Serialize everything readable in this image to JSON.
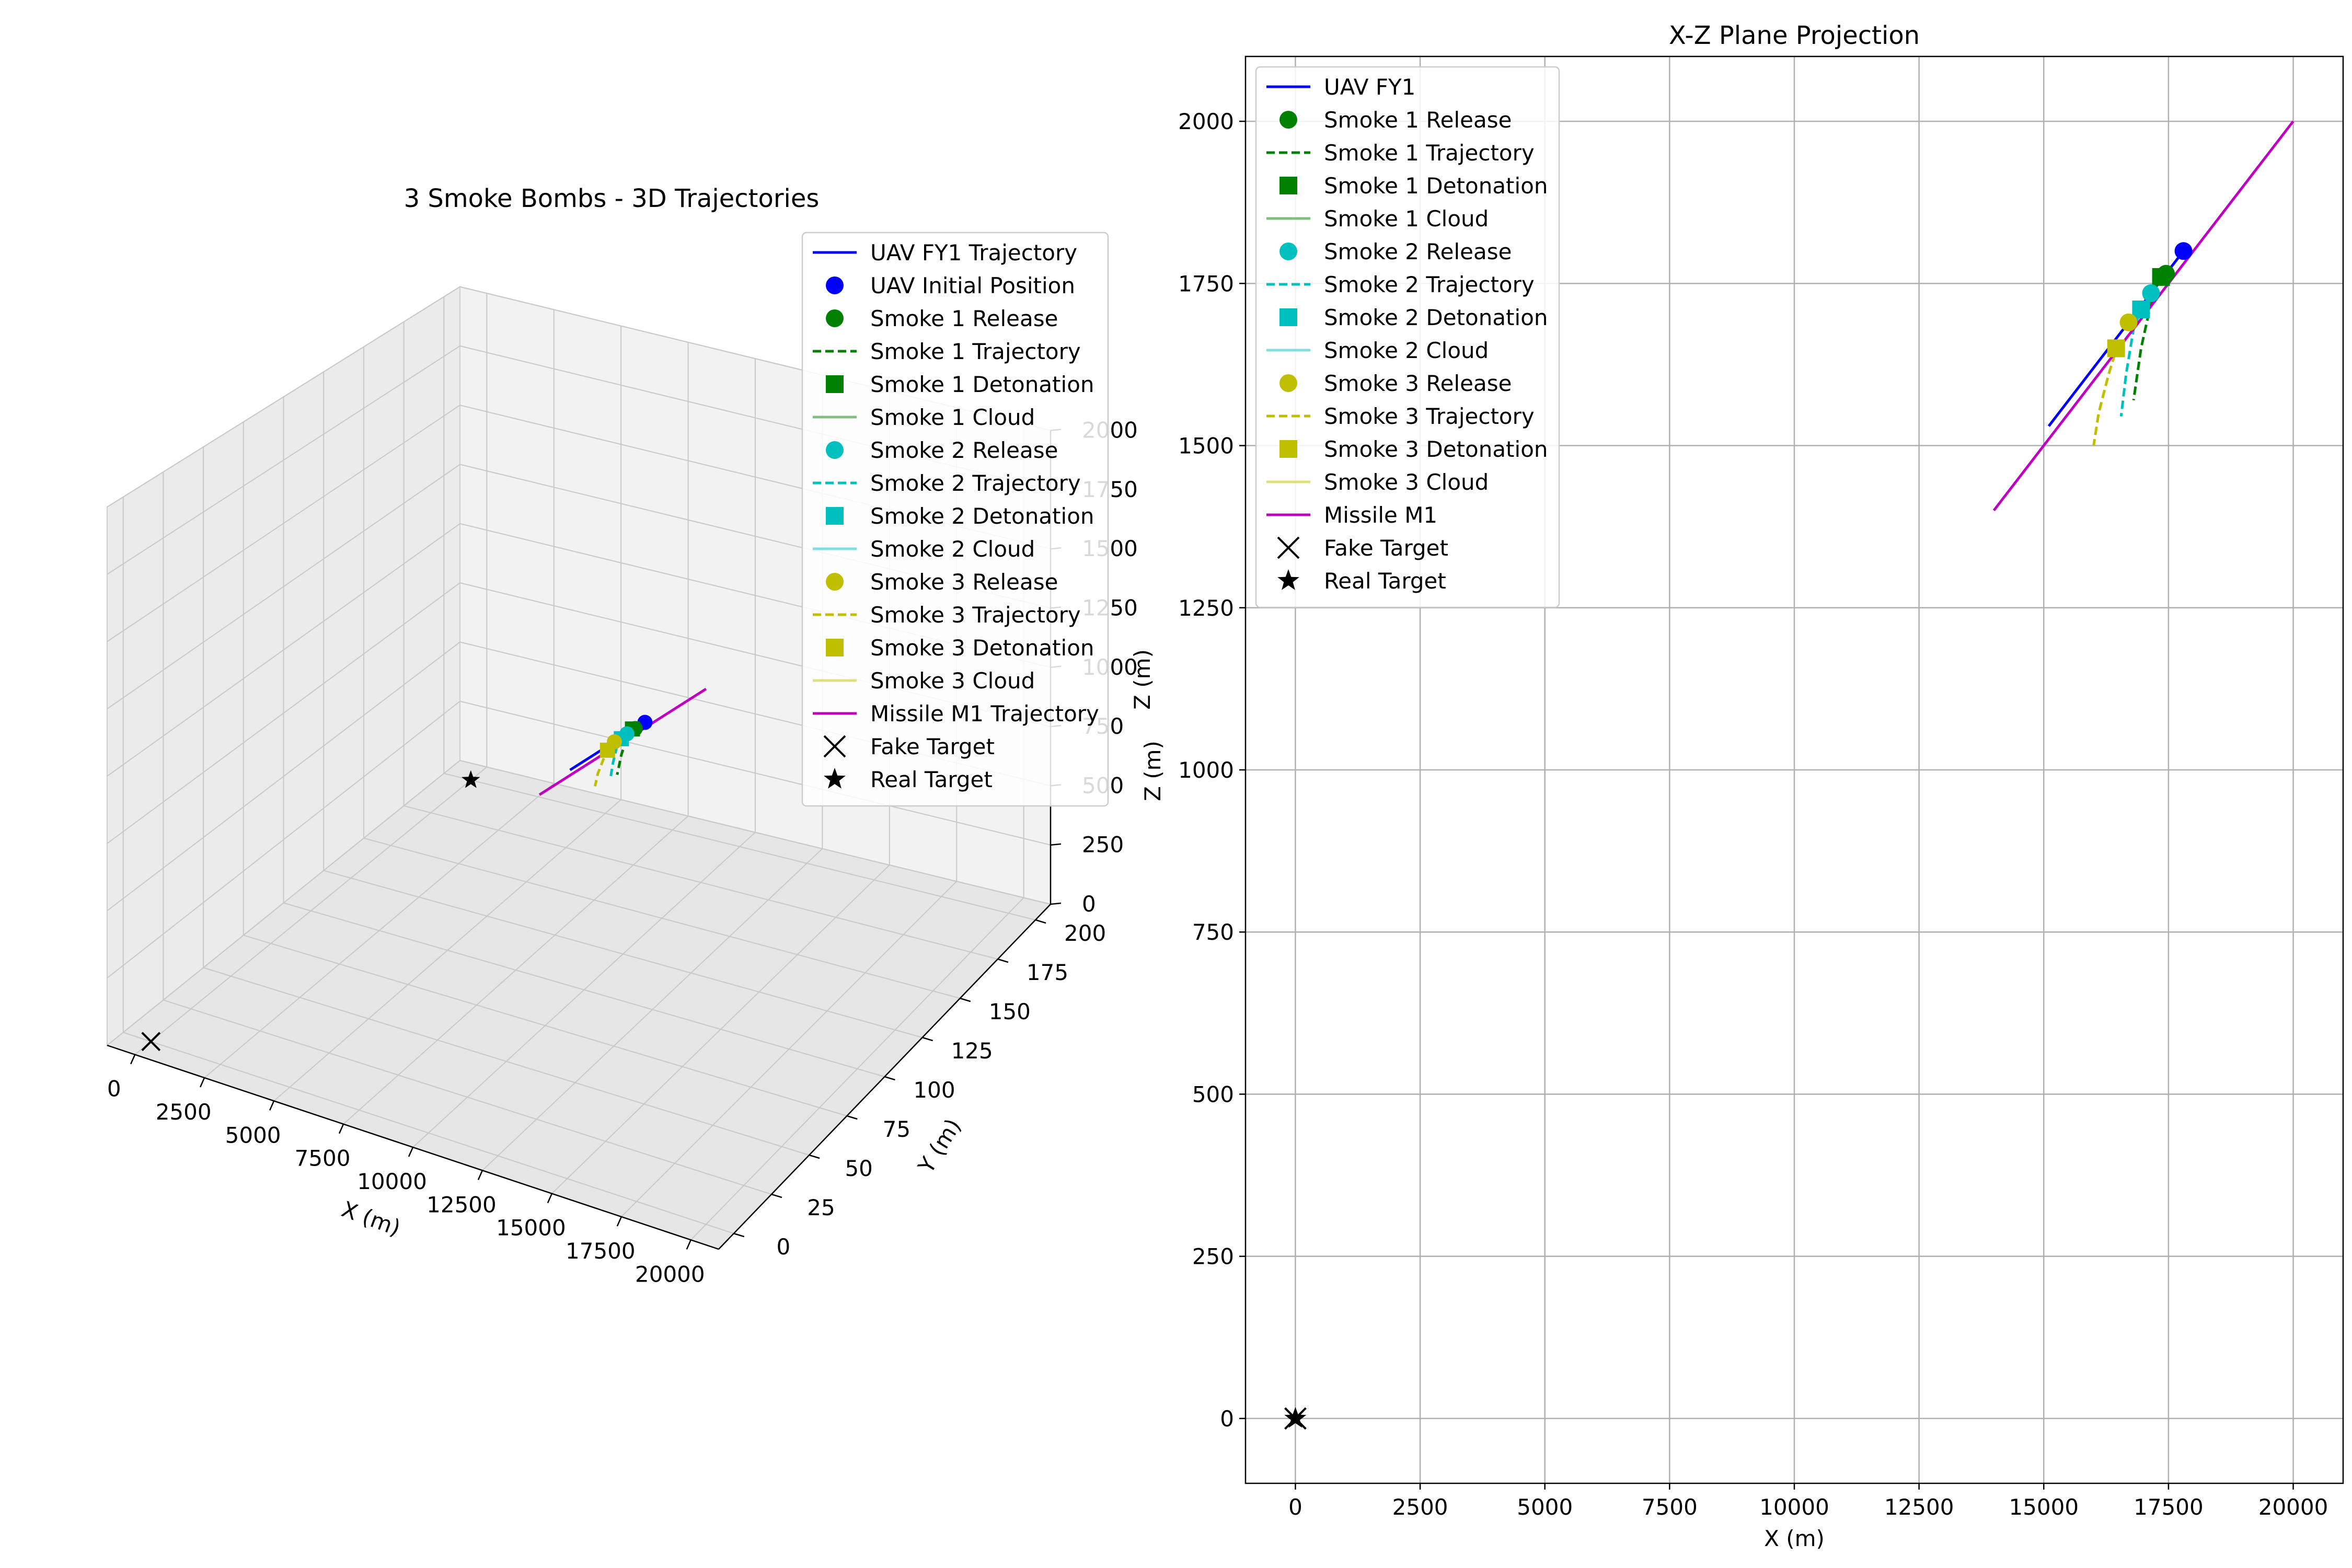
{
  "colors": {
    "uav": "#0000ff",
    "smoke1": "#008000",
    "smoke1_cloud": "#7fbf7f",
    "smoke2": "#00bfbf",
    "smoke2_cloud": "#7fdfdf",
    "smoke3": "#bfbf00",
    "smoke3_cloud": "#dfdf7f",
    "missile": "#bf00bf",
    "target": "#000000",
    "grid": "#b0b0b0"
  },
  "chart_data": [
    {
      "type": "line3d",
      "title": "3 Smoke Bombs - 3D Trajectories",
      "xlabel": "X (m)",
      "ylabel": "Y (m)",
      "zlabel": "Z (m)",
      "xticks": [
        "0",
        "2500",
        "5000",
        "7500",
        "10000",
        "12500",
        "15000",
        "17500",
        "20000"
      ],
      "yticks": [
        "0",
        "25",
        "50",
        "75",
        "100",
        "125",
        "150",
        "175",
        "200"
      ],
      "zticks": [
        "0",
        "250",
        "500",
        "750",
        "1000",
        "1250",
        "1500",
        "1750",
        "2000"
      ],
      "xlim": [
        -1000,
        21000
      ],
      "ylim": [
        -10,
        210
      ],
      "zlim": [
        0,
        2000
      ],
      "legend_position": "upper-right",
      "legend": [
        {
          "label": "UAV FY1 Trajectory",
          "kind": "line",
          "color": "uav"
        },
        {
          "label": "UAV Initial Position",
          "kind": "circle",
          "color": "uav"
        },
        {
          "label": "Smoke 1 Release",
          "kind": "circle",
          "color": "smoke1"
        },
        {
          "label": "Smoke 1 Trajectory",
          "kind": "dash",
          "color": "smoke1"
        },
        {
          "label": "Smoke 1 Detonation",
          "kind": "square",
          "color": "smoke1"
        },
        {
          "label": "Smoke 1 Cloud",
          "kind": "line",
          "color": "smoke1_cloud"
        },
        {
          "label": "Smoke 2 Release",
          "kind": "circle",
          "color": "smoke2"
        },
        {
          "label": "Smoke 2 Trajectory",
          "kind": "dash",
          "color": "smoke2"
        },
        {
          "label": "Smoke 2 Detonation",
          "kind": "square",
          "color": "smoke2"
        },
        {
          "label": "Smoke 2 Cloud",
          "kind": "line",
          "color": "smoke2_cloud"
        },
        {
          "label": "Smoke 3 Release",
          "kind": "circle",
          "color": "smoke3"
        },
        {
          "label": "Smoke 3 Trajectory",
          "kind": "dash",
          "color": "smoke3"
        },
        {
          "label": "Smoke 3 Detonation",
          "kind": "square",
          "color": "smoke3"
        },
        {
          "label": "Smoke 3 Cloud",
          "kind": "line",
          "color": "smoke3_cloud"
        },
        {
          "label": "Missile M1 Trajectory",
          "kind": "line",
          "color": "missile"
        },
        {
          "label": "Fake Target",
          "kind": "x",
          "color": "target"
        },
        {
          "label": "Real Target",
          "kind": "star",
          "color": "target"
        }
      ],
      "series": {
        "uav": {
          "x": [
            17800,
            15100
          ],
          "y": [
            0,
            0
          ],
          "z": [
            1800,
            1530
          ]
        },
        "missile": {
          "x": [
            20000,
            14000
          ],
          "y": [
            0,
            0
          ],
          "z": [
            2000,
            1400
          ]
        },
        "smoke1_traj": {
          "x": [
            17350,
            17150,
            16950,
            16800
          ],
          "y": [
            0,
            0,
            0,
            0
          ],
          "z": [
            1760,
            1720,
            1650,
            1570
          ]
        },
        "smoke2_traj": {
          "x": [
            17000,
            16800,
            16650,
            16550
          ],
          "y": [
            0,
            0,
            0,
            0
          ],
          "z": [
            1720,
            1680,
            1610,
            1545
          ]
        },
        "smoke3_traj": {
          "x": [
            16500,
            16300,
            16100,
            16000
          ],
          "y": [
            0,
            0,
            0,
            0
          ],
          "z": [
            1660,
            1610,
            1550,
            1500
          ]
        },
        "points": [
          {
            "key": "uav_initial",
            "x": 17800,
            "y": 0,
            "z": 1800,
            "marker": "circle",
            "color": "uav"
          },
          {
            "key": "smoke1_release",
            "x": 17450,
            "y": 0,
            "z": 1765,
            "marker": "circle",
            "color": "smoke1"
          },
          {
            "key": "smoke1_detonation",
            "x": 17350,
            "y": 0,
            "z": 1760,
            "marker": "square",
            "color": "smoke1"
          },
          {
            "key": "smoke2_release",
            "x": 17150,
            "y": 0,
            "z": 1735,
            "marker": "circle",
            "color": "smoke2"
          },
          {
            "key": "smoke2_detonation",
            "x": 16950,
            "y": 0,
            "z": 1710,
            "marker": "square",
            "color": "smoke2"
          },
          {
            "key": "smoke3_release",
            "x": 16700,
            "y": 0,
            "z": 1690,
            "marker": "circle",
            "color": "smoke3"
          },
          {
            "key": "smoke3_detonation",
            "x": 16450,
            "y": 0,
            "z": 1650,
            "marker": "square",
            "color": "smoke3"
          },
          {
            "key": "fake_target",
            "x": 0,
            "y": 0,
            "z": 0,
            "marker": "x",
            "color": "target"
          },
          {
            "key": "real_target",
            "x": 0,
            "y": 200,
            "z": 0,
            "marker": "star",
            "color": "target"
          }
        ]
      }
    },
    {
      "type": "line",
      "title": "X-Z Plane Projection",
      "xlabel": "X (m)",
      "ylabel": "Z (m)",
      "xticks": [
        0,
        2500,
        5000,
        7500,
        10000,
        12500,
        15000,
        17500,
        20000
      ],
      "yticks": [
        0,
        250,
        500,
        750,
        1000,
        1250,
        1500,
        1750,
        2000
      ],
      "xlim": [
        -1000,
        21000
      ],
      "ylim": [
        -100,
        2100
      ],
      "grid": true,
      "legend_position": "upper-left",
      "legend": [
        {
          "label": "UAV FY1",
          "kind": "line",
          "color": "uav"
        },
        {
          "label": "Smoke 1 Release",
          "kind": "circle",
          "color": "smoke1"
        },
        {
          "label": "Smoke 1 Trajectory",
          "kind": "dash",
          "color": "smoke1"
        },
        {
          "label": "Smoke 1 Detonation",
          "kind": "square",
          "color": "smoke1"
        },
        {
          "label": "Smoke 1 Cloud",
          "kind": "line",
          "color": "smoke1_cloud"
        },
        {
          "label": "Smoke 2 Release",
          "kind": "circle",
          "color": "smoke2"
        },
        {
          "label": "Smoke 2 Trajectory",
          "kind": "dash",
          "color": "smoke2"
        },
        {
          "label": "Smoke 2 Detonation",
          "kind": "square",
          "color": "smoke2"
        },
        {
          "label": "Smoke 2 Cloud",
          "kind": "line",
          "color": "smoke2_cloud"
        },
        {
          "label": "Smoke 3 Release",
          "kind": "circle",
          "color": "smoke3"
        },
        {
          "label": "Smoke 3 Trajectory",
          "kind": "dash",
          "color": "smoke3"
        },
        {
          "label": "Smoke 3 Detonation",
          "kind": "square",
          "color": "smoke3"
        },
        {
          "label": "Smoke 3 Cloud",
          "kind": "line",
          "color": "smoke3_cloud"
        },
        {
          "label": "Missile M1",
          "kind": "line",
          "color": "missile"
        },
        {
          "label": "Fake Target",
          "kind": "x",
          "color": "target"
        },
        {
          "label": "Real Target",
          "kind": "star",
          "color": "target"
        }
      ],
      "series": {
        "uav": {
          "x": [
            17800,
            15100
          ],
          "z": [
            1800,
            1530
          ]
        },
        "missile": {
          "x": [
            20000,
            14000
          ],
          "z": [
            2000,
            1400
          ]
        },
        "smoke1_traj": {
          "x": [
            17350,
            17150,
            16950,
            16800
          ],
          "z": [
            1760,
            1720,
            1650,
            1570
          ]
        },
        "smoke2_traj": {
          "x": [
            17000,
            16800,
            16650,
            16550
          ],
          "z": [
            1720,
            1680,
            1610,
            1545
          ]
        },
        "smoke3_traj": {
          "x": [
            16500,
            16300,
            16100,
            16000
          ],
          "z": [
            1660,
            1610,
            1550,
            1500
          ]
        },
        "points": [
          {
            "key": "uav_initial",
            "x": 17800,
            "z": 1800,
            "marker": "circle",
            "color": "uav"
          },
          {
            "key": "smoke1_release",
            "x": 17450,
            "z": 1765,
            "marker": "circle",
            "color": "smoke1"
          },
          {
            "key": "smoke1_detonation",
            "x": 17350,
            "z": 1760,
            "marker": "square",
            "color": "smoke1"
          },
          {
            "key": "smoke2_release",
            "x": 17150,
            "z": 1735,
            "marker": "circle",
            "color": "smoke2"
          },
          {
            "key": "smoke2_detonation",
            "x": 16950,
            "z": 1710,
            "marker": "square",
            "color": "smoke2"
          },
          {
            "key": "smoke3_release",
            "x": 16700,
            "z": 1690,
            "marker": "circle",
            "color": "smoke3"
          },
          {
            "key": "smoke3_detonation",
            "x": 16450,
            "z": 1650,
            "marker": "square",
            "color": "smoke3"
          },
          {
            "key": "fake_target",
            "x": 0,
            "z": 0,
            "marker": "x",
            "color": "target"
          },
          {
            "key": "real_target",
            "x": 0,
            "z": 0,
            "marker": "star",
            "color": "target"
          }
        ]
      }
    }
  ]
}
